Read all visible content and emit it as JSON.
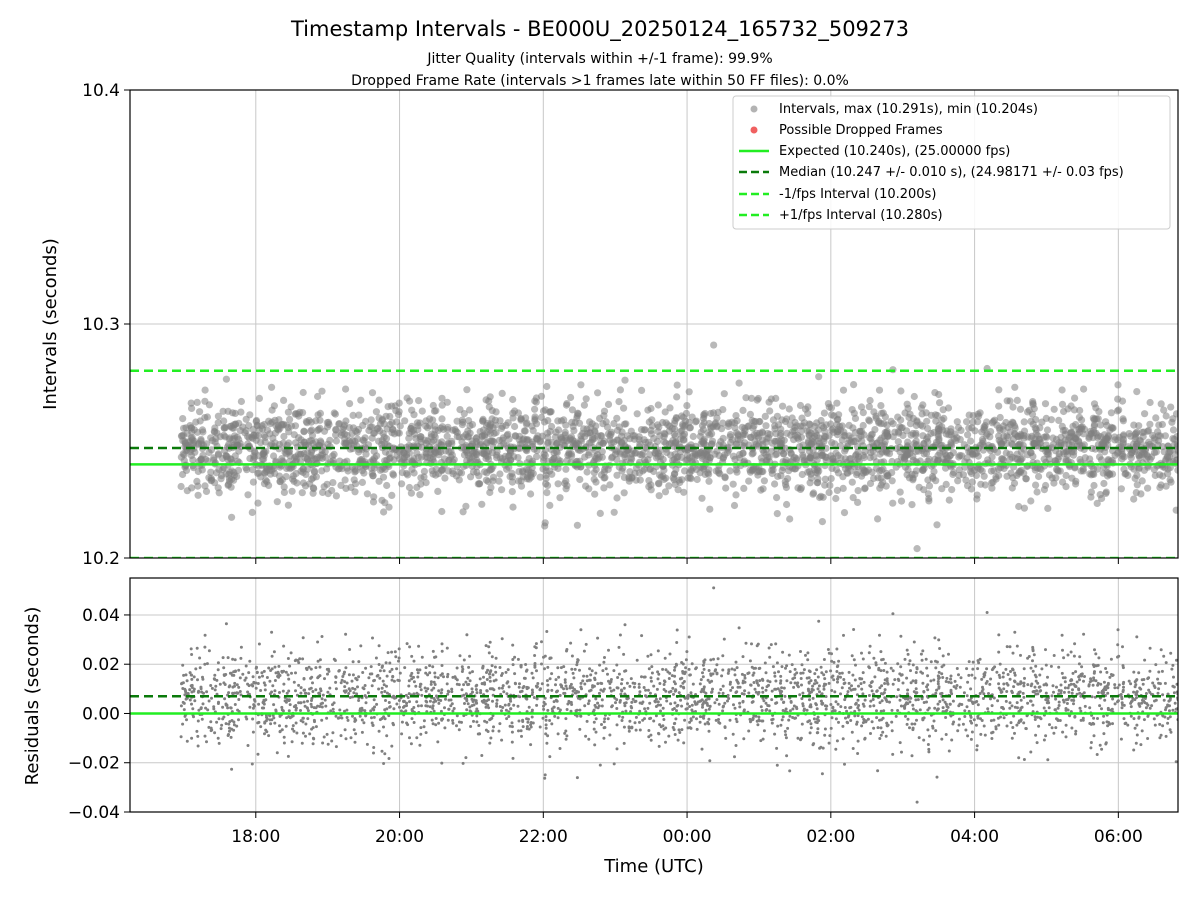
{
  "figure": {
    "title": "Timestamp Intervals - BE000U_20250124_165732_509273",
    "subtitle_1": "Jitter Quality (intervals within +/-1 frame): 99.9%",
    "subtitle_2": "Dropped Frame Rate (intervals >1 frames late within 50 FF files): 0.0%"
  },
  "colors": {
    "points": "#808080",
    "dropped": "#f06060",
    "expected": "#22ee22",
    "median": "#0a7a0a",
    "interval_bounds": "#22ee22",
    "grid": "#c8c8c8"
  },
  "chart_data": [
    {
      "type": "scatter",
      "panel": "top",
      "ylabel": "Intervals (seconds)",
      "ylim": [
        10.2,
        10.4
      ],
      "yticks": [
        "10.2",
        "10.3",
        "10.4"
      ],
      "ytick_values": [
        10.2,
        10.3,
        10.4
      ],
      "grid": true,
      "legend_position": "upper right",
      "series": [
        {
          "name": "Intervals, max (10.291s), min (10.204s)",
          "kind": "points",
          "center": 10.247,
          "spread": 0.01,
          "max": 10.291,
          "min": 10.204
        },
        {
          "name": "Possible Dropped Frames",
          "kind": "points",
          "values": []
        },
        {
          "name": "Expected (10.240s), (25.00000 fps)",
          "kind": "hline",
          "y": 10.24,
          "style": "solid"
        },
        {
          "name": "Median (10.247 +/- 0.010 s), (24.98171 +/- 0.03 fps)",
          "kind": "hline",
          "y": 10.247,
          "style": "dashed"
        },
        {
          "name": "-1/fps Interval (10.200s)",
          "kind": "hline",
          "y": 10.2,
          "style": "dashed"
        },
        {
          "name": "+1/fps Interval (10.280s)",
          "kind": "hline",
          "y": 10.28,
          "style": "dashed"
        }
      ]
    },
    {
      "type": "scatter",
      "panel": "bottom",
      "xlabel": "Time (UTC)",
      "ylabel": "Residuals (seconds)",
      "ylim": [
        -0.04,
        0.055
      ],
      "yticks": [
        "−0.04",
        "−0.02",
        "0.00",
        "0.02",
        "0.04"
      ],
      "ytick_values": [
        -0.04,
        -0.02,
        0.0,
        0.02,
        0.04
      ],
      "grid": true,
      "series": [
        {
          "kind": "points",
          "center": 0.007,
          "spread": 0.01
        },
        {
          "kind": "hline",
          "y": 0.0,
          "style": "solid"
        },
        {
          "kind": "hline",
          "y": 0.007,
          "style": "dashed"
        }
      ]
    }
  ],
  "x_axis": {
    "xlim_hours": [
      16.25,
      30.83
    ],
    "data_start_hours": 16.96,
    "data_end_hours": 30.83,
    "ticks": [
      "18:00",
      "20:00",
      "22:00",
      "00:00",
      "02:00",
      "04:00",
      "06:00"
    ],
    "tick_hours": [
      18,
      20,
      22,
      24,
      26,
      28,
      30
    ]
  }
}
